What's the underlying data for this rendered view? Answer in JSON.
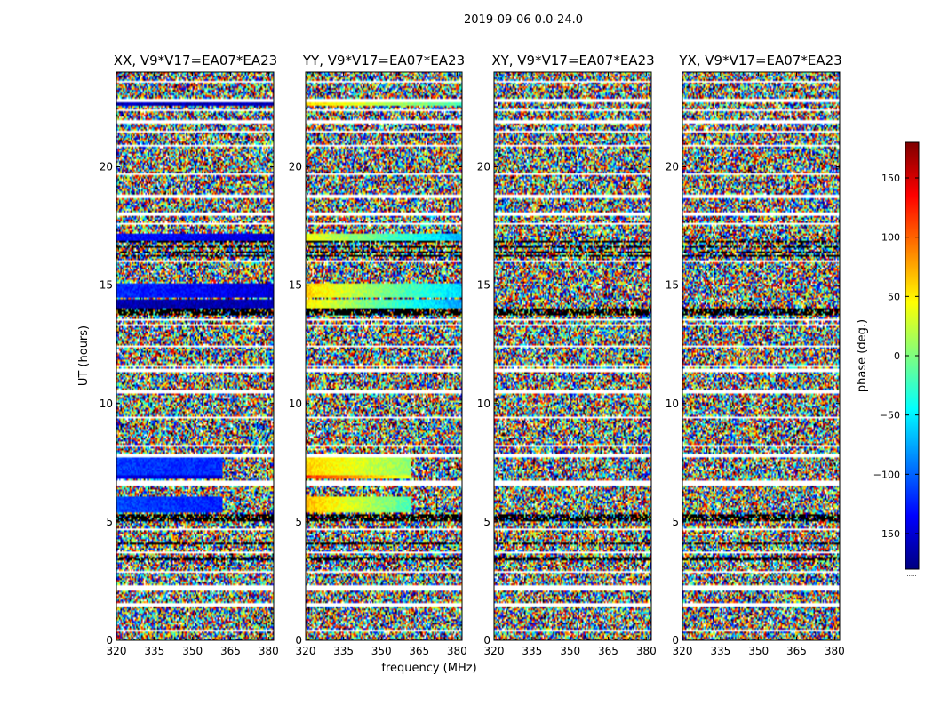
{
  "chart_data": {
    "type": "heatmap",
    "title": "2019-09-06 0.0-24.0",
    "xlabel": "frequency (MHz)",
    "ylabel": "UT (hours)",
    "xlim": [
      320,
      382
    ],
    "ylim": [
      0,
      24
    ],
    "x_ticks": [
      320,
      335,
      350,
      365,
      380
    ],
    "y_ticks": [
      0,
      5,
      10,
      15,
      20
    ],
    "colorbar": {
      "label": "phase (deg.)",
      "range": [
        -180,
        180
      ],
      "ticks": [
        150,
        100,
        50,
        0,
        -50,
        -100,
        -150
      ],
      "tick_labels": [
        "150",
        "100",
        "50",
        "0",
        "−50",
        "−100",
        "−150"
      ],
      "colormap": [
        "#00007f",
        "#0000ff",
        "#007fff",
        "#00ffff",
        "#7fff7f",
        "#ffff00",
        "#ff7f00",
        "#ff0000",
        "#7f0000"
      ]
    },
    "panels": [
      {
        "title": "XX, V9*V17=EA07*EA23",
        "coherent_regions": [
          {
            "t0": 13.9,
            "t1": 14.4,
            "f0": 320,
            "f1": 382,
            "phase_start": -165,
            "phase_end": -160
          },
          {
            "t0": 14.5,
            "t1": 15.1,
            "f0": 320,
            "f1": 382,
            "phase_start": -120,
            "phase_end": -150
          },
          {
            "t0": 16.9,
            "t1": 17.2,
            "f0": 320,
            "f1": 382,
            "phase_start": -130,
            "phase_end": -150
          },
          {
            "t0": 7.0,
            "t1": 7.7,
            "f0": 320,
            "f1": 362,
            "phase_start": -115,
            "phase_end": -120
          },
          {
            "t0": 6.8,
            "t1": 7.0,
            "f0": 320,
            "f1": 362,
            "phase_start": -145,
            "phase_end": -150
          },
          {
            "t0": 5.4,
            "t1": 6.1,
            "f0": 320,
            "f1": 362,
            "phase_start": -110,
            "phase_end": -125
          },
          {
            "t0": 22.6,
            "t1": 22.7,
            "f0": 320,
            "f1": 382,
            "phase_start": -160,
            "phase_end": -160
          }
        ]
      },
      {
        "title": "YY, V9*V17=EA07*EA23",
        "coherent_regions": [
          {
            "t0": 13.9,
            "t1": 14.4,
            "f0": 320,
            "f1": 382,
            "phase_start": 50,
            "phase_end": -80
          },
          {
            "t0": 14.5,
            "t1": 15.1,
            "f0": 320,
            "f1": 382,
            "phase_start": 60,
            "phase_end": -60
          },
          {
            "t0": 16.9,
            "t1": 17.2,
            "f0": 320,
            "f1": 382,
            "phase_start": 40,
            "phase_end": -70
          },
          {
            "t0": 7.0,
            "t1": 7.7,
            "f0": 320,
            "f1": 362,
            "phase_start": 60,
            "phase_end": 5
          },
          {
            "t0": 6.8,
            "t1": 7.0,
            "f0": 320,
            "f1": 362,
            "phase_start": 120,
            "phase_end": 30
          },
          {
            "t0": 5.4,
            "t1": 6.1,
            "f0": 320,
            "f1": 362,
            "phase_start": 70,
            "phase_end": -20
          },
          {
            "t0": 22.6,
            "t1": 22.7,
            "f0": 320,
            "f1": 382,
            "phase_start": 60,
            "phase_end": -20
          }
        ]
      },
      {
        "title": "XY, V9*V17=EA07*EA23",
        "coherent_regions": []
      },
      {
        "title": "YX, V9*V17=EA07*EA23",
        "coherent_regions": []
      }
    ],
    "flagged_gaps_hours": [
      0.4,
      1.5,
      2.15,
      2.25,
      2.9,
      3.7,
      4.7,
      6.6,
      6.7,
      7.8,
      8.2,
      9.4,
      10.5,
      11.4,
      11.6,
      12.4,
      13.3,
      13.55,
      16.0,
      17.6,
      18.0,
      18.75,
      18.8,
      19.7,
      20.9,
      21.5,
      21.9,
      22.4,
      22.8,
      23.6
    ],
    "dense_flagged_bands_hours": [
      [
        5.0,
        5.5
      ],
      [
        16.0,
        16.9
      ],
      [
        13.7,
        14.0
      ],
      [
        3.4,
        4.1
      ],
      [
        8.6,
        9.0
      ]
    ],
    "colorbar_footnote": "....."
  }
}
